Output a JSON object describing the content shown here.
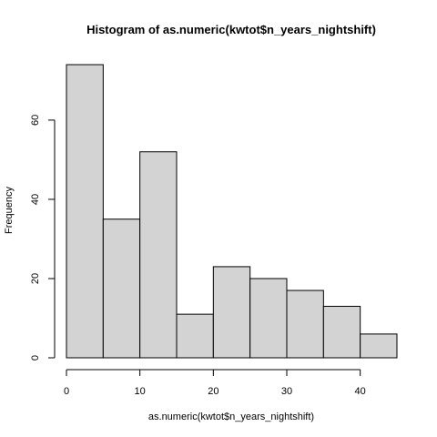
{
  "chart_data": {
    "type": "bar",
    "title": "Histogram of as.numeric(kwtot$n_years_nightshift)",
    "xlabel": "as.numeric(kwtot$n_years_nightshift)",
    "ylabel": "Frequency",
    "bins": [
      {
        "x0": 0,
        "x1": 5,
        "count": 74
      },
      {
        "x0": 5,
        "x1": 10,
        "count": 35
      },
      {
        "x0": 10,
        "x1": 15,
        "count": 52
      },
      {
        "x0": 15,
        "x1": 20,
        "count": 11
      },
      {
        "x0": 20,
        "x1": 25,
        "count": 23
      },
      {
        "x0": 25,
        "x1": 30,
        "count": 20
      },
      {
        "x0": 30,
        "x1": 35,
        "count": 17
      },
      {
        "x0": 35,
        "x1": 40,
        "count": 13
      },
      {
        "x0": 40,
        "x1": 45,
        "count": 6
      }
    ],
    "xlim": [
      0,
      45
    ],
    "ylim": [
      0,
      74
    ],
    "x_ticks": [
      0,
      10,
      20,
      30,
      40
    ],
    "y_ticks": [
      0,
      20,
      40,
      60
    ],
    "bar_fill": "#d3d3d3",
    "bar_stroke": "#000000",
    "grid": false,
    "legend": "none"
  }
}
